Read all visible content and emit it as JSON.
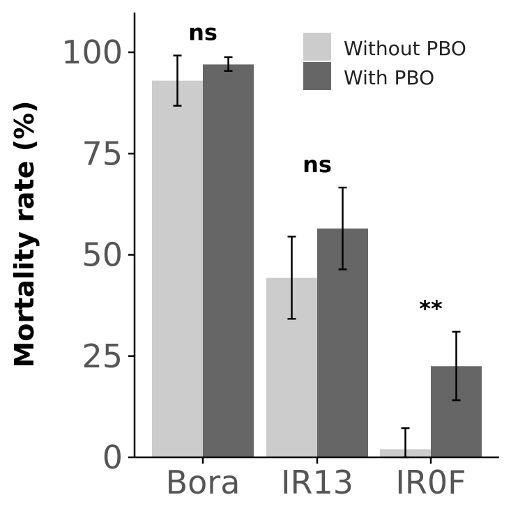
{
  "chart_data": {
    "type": "bar",
    "ylabel": "Mortality rate (%)",
    "xlabel": "",
    "ylim": [
      0,
      110
    ],
    "yticks": [
      "0",
      "25",
      "50",
      "75",
      "100"
    ],
    "categories": [
      "Bora",
      "IR13",
      "IR0F"
    ],
    "series": [
      {
        "name": "Without PBO",
        "color": "#cccccc",
        "values": [
          93,
          44.3,
          2
        ],
        "err_low": [
          86.8,
          34.2,
          0
        ],
        "err_high": [
          99.2,
          54.5,
          7.2
        ]
      },
      {
        "name": "With PBO",
        "color": "#666666",
        "values": [
          97,
          56.5,
          22.5
        ],
        "err_low": [
          95.4,
          46.4,
          14.1
        ],
        "err_high": [
          98.8,
          66.6,
          31
        ]
      }
    ],
    "significance": [
      "ns",
      "ns",
      "**"
    ],
    "legend_position": "top-right",
    "grid": false
  }
}
